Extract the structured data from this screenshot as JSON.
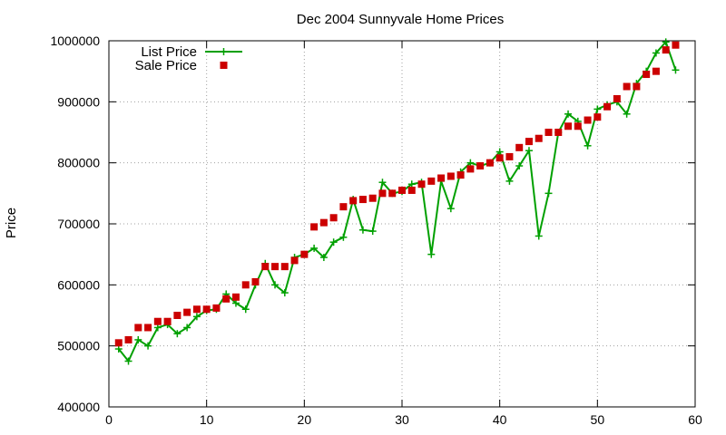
{
  "chart_data": {
    "type": "line",
    "title": "Dec 2004 Sunnyvale Home Prices",
    "xlabel": "",
    "ylabel": "Price",
    "xlim": [
      0,
      60
    ],
    "ylim": [
      400000,
      1000000
    ],
    "xticks": [
      0,
      10,
      20,
      30,
      40,
      50,
      60
    ],
    "yticks": [
      400000,
      500000,
      600000,
      700000,
      800000,
      900000,
      1000000
    ],
    "grid": true,
    "legend": "top-left",
    "series": [
      {
        "name": "List Price",
        "style": "lines+points",
        "color": "#00a000",
        "points": [
          [
            1,
            495000
          ],
          [
            2,
            475000
          ],
          [
            3,
            510000
          ],
          [
            4,
            500000
          ],
          [
            5,
            530000
          ],
          [
            6,
            535000
          ],
          [
            7,
            520000
          ],
          [
            8,
            530000
          ],
          [
            9,
            548000
          ],
          [
            10,
            558000
          ],
          [
            11,
            560000
          ],
          [
            12,
            585000
          ],
          [
            13,
            570000
          ],
          [
            14,
            560000
          ],
          [
            15,
            600000
          ],
          [
            16,
            635000
          ],
          [
            17,
            600000
          ],
          [
            18,
            587000
          ],
          [
            19,
            645000
          ],
          [
            20,
            650000
          ],
          [
            21,
            660000
          ],
          [
            22,
            645000
          ],
          [
            23,
            670000
          ],
          [
            24,
            678000
          ],
          [
            25,
            740000
          ],
          [
            26,
            690000
          ],
          [
            27,
            688000
          ],
          [
            28,
            768000
          ],
          [
            29,
            750000
          ],
          [
            30,
            753000
          ],
          [
            31,
            765000
          ],
          [
            32,
            768000
          ],
          [
            33,
            650000
          ],
          [
            34,
            770000
          ],
          [
            35,
            725000
          ],
          [
            36,
            785000
          ],
          [
            37,
            800000
          ],
          [
            38,
            795000
          ],
          [
            39,
            800000
          ],
          [
            40,
            818000
          ],
          [
            41,
            770000
          ],
          [
            42,
            795000
          ],
          [
            43,
            820000
          ],
          [
            44,
            680000
          ],
          [
            45,
            750000
          ],
          [
            46,
            850000
          ],
          [
            47,
            880000
          ],
          [
            48,
            868000
          ],
          [
            49,
            828000
          ],
          [
            50,
            888000
          ],
          [
            51,
            895000
          ],
          [
            52,
            900000
          ],
          [
            53,
            880000
          ],
          [
            54,
            930000
          ],
          [
            55,
            950000
          ],
          [
            56,
            980000
          ],
          [
            57,
            998000
          ],
          [
            58,
            952000
          ]
        ]
      },
      {
        "name": "Sale Price",
        "style": "points",
        "color": "#cc0000",
        "points": [
          [
            1,
            505000
          ],
          [
            2,
            510000
          ],
          [
            3,
            530000
          ],
          [
            4,
            530000
          ],
          [
            5,
            540000
          ],
          [
            6,
            540000
          ],
          [
            7,
            550000
          ],
          [
            8,
            555000
          ],
          [
            9,
            560000
          ],
          [
            10,
            560000
          ],
          [
            11,
            562000
          ],
          [
            12,
            577000
          ],
          [
            13,
            580000
          ],
          [
            14,
            600000
          ],
          [
            15,
            605000
          ],
          [
            16,
            630000
          ],
          [
            17,
            630000
          ],
          [
            18,
            630000
          ],
          [
            19,
            640000
          ],
          [
            20,
            650000
          ],
          [
            21,
            695000
          ],
          [
            22,
            702000
          ],
          [
            23,
            710000
          ],
          [
            24,
            728000
          ],
          [
            25,
            738000
          ],
          [
            26,
            740000
          ],
          [
            27,
            742000
          ],
          [
            28,
            750000
          ],
          [
            29,
            750000
          ],
          [
            30,
            755000
          ],
          [
            31,
            755000
          ],
          [
            32,
            765000
          ],
          [
            33,
            770000
          ],
          [
            34,
            775000
          ],
          [
            35,
            778000
          ],
          [
            36,
            780000
          ],
          [
            37,
            790000
          ],
          [
            38,
            795000
          ],
          [
            39,
            800000
          ],
          [
            40,
            808000
          ],
          [
            41,
            810000
          ],
          [
            42,
            825000
          ],
          [
            43,
            835000
          ],
          [
            44,
            840000
          ],
          [
            45,
            850000
          ],
          [
            46,
            850000
          ],
          [
            47,
            860000
          ],
          [
            48,
            860000
          ],
          [
            49,
            870000
          ],
          [
            50,
            875000
          ],
          [
            51,
            892000
          ],
          [
            52,
            905000
          ],
          [
            53,
            925000
          ],
          [
            54,
            925000
          ],
          [
            55,
            945000
          ],
          [
            56,
            950000
          ],
          [
            57,
            985000
          ],
          [
            58,
            993000
          ]
        ]
      }
    ]
  }
}
